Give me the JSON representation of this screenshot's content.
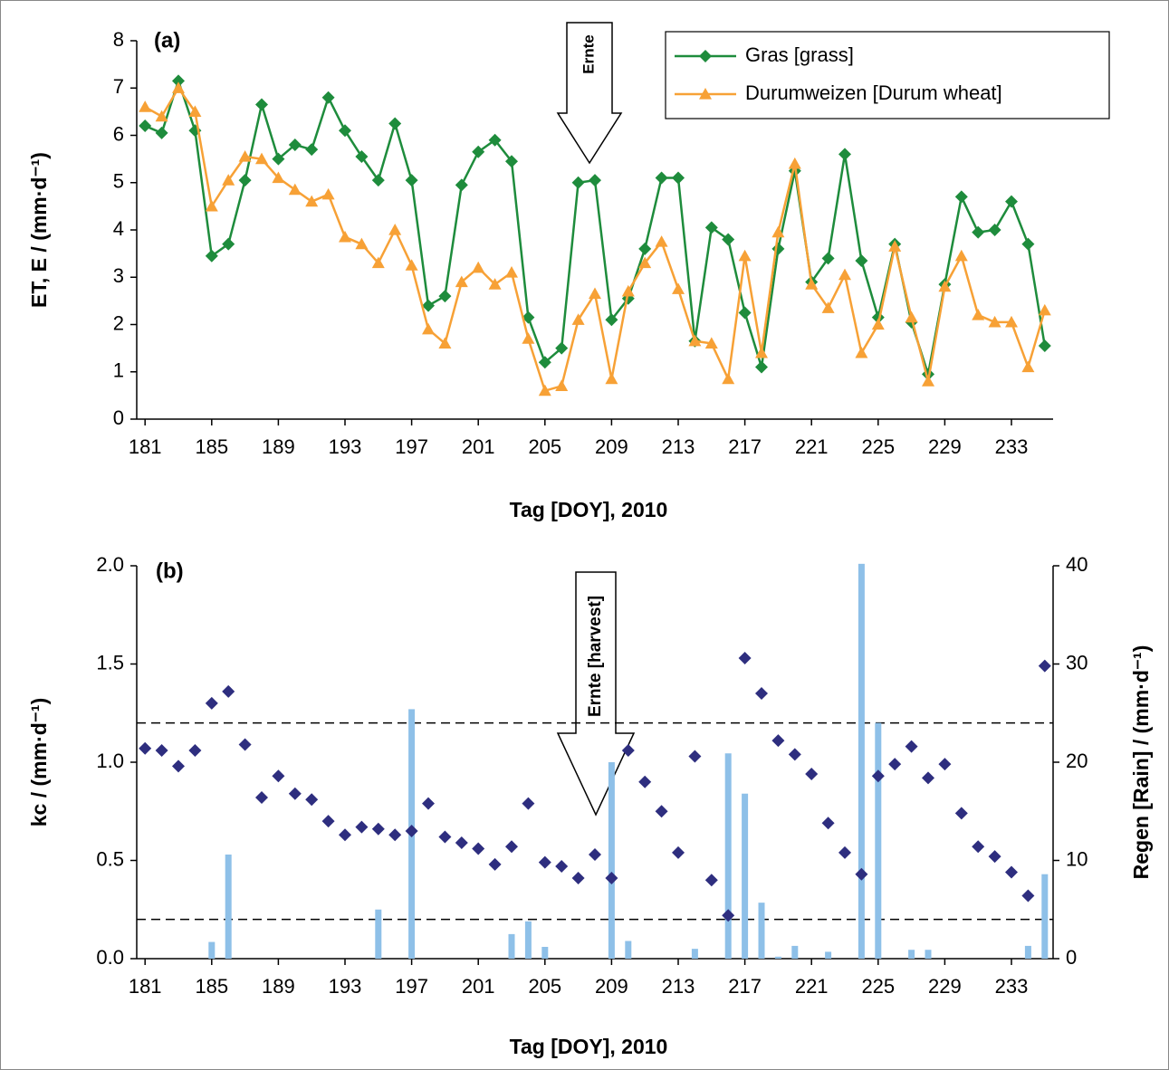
{
  "chart_data": [
    {
      "type": "line",
      "panel_label": "(a)",
      "ylabel": "ET, E / (mm·d⁻¹)",
      "xlabel": "Tag [DOY], 2010",
      "annotation": "Ernte",
      "x": [
        181,
        182,
        183,
        184,
        185,
        186,
        187,
        188,
        189,
        190,
        191,
        192,
        193,
        194,
        195,
        196,
        197,
        198,
        199,
        200,
        201,
        202,
        203,
        204,
        205,
        206,
        207,
        208,
        209,
        210,
        211,
        212,
        213,
        214,
        215,
        216,
        217,
        218,
        219,
        220,
        221,
        222,
        223,
        224,
        225,
        226,
        227,
        228,
        229,
        230,
        231,
        232,
        233,
        234,
        235
      ],
      "xlim": [
        180.5,
        235.5
      ],
      "xticks": [
        181,
        185,
        189,
        193,
        197,
        201,
        205,
        209,
        213,
        217,
        221,
        225,
        229,
        233
      ],
      "ylim": [
        0,
        8
      ],
      "yticks": [
        0,
        1,
        2,
        3,
        4,
        5,
        6,
        7,
        8
      ],
      "legend": "top-right",
      "series": [
        {
          "name": "Gras [grass]",
          "color": "#1e8c3c",
          "marker": "diamond",
          "values": [
            6.2,
            6.05,
            7.15,
            6.1,
            3.45,
            3.7,
            5.05,
            6.65,
            5.5,
            5.8,
            5.7,
            6.8,
            6.1,
            5.55,
            5.05,
            6.25,
            5.05,
            2.4,
            2.6,
            4.95,
            5.65,
            5.9,
            5.45,
            2.15,
            1.2,
            1.5,
            5.0,
            5.05,
            2.1,
            2.55,
            3.6,
            5.1,
            5.1,
            1.65,
            4.05,
            3.8,
            2.25,
            1.1,
            3.6,
            5.25,
            2.9,
            3.4,
            5.6,
            3.35,
            2.15,
            3.7,
            2.05,
            0.95,
            2.85,
            4.7,
            3.95,
            4.0,
            4.6,
            3.7,
            1.55
          ]
        },
        {
          "name": "Durumweizen [Durum wheat]",
          "color": "#f7a136",
          "marker": "triangle",
          "values": [
            6.6,
            6.4,
            7.0,
            6.5,
            4.5,
            5.05,
            5.55,
            5.5,
            5.1,
            4.85,
            4.6,
            4.75,
            3.85,
            3.7,
            3.3,
            4.0,
            3.25,
            1.9,
            1.6,
            2.9,
            3.2,
            2.85,
            3.1,
            1.7,
            0.6,
            0.7,
            2.1,
            2.65,
            0.85,
            2.7,
            3.3,
            3.75,
            2.75,
            1.65,
            1.6,
            0.85,
            3.45,
            1.4,
            3.95,
            5.4,
            2.85,
            2.35,
            3.05,
            1.4,
            2.0,
            3.65,
            2.15,
            0.8,
            2.8,
            3.45,
            2.2,
            2.05,
            2.05,
            1.1,
            2.3
          ]
        }
      ]
    },
    {
      "type": "combo",
      "panel_label": "(b)",
      "ylabel": "kc / (mm·d⁻¹)",
      "y2label": "Regen [Rain] / (mm·d⁻¹)",
      "xlabel": "Tag [DOY], 2010",
      "annotation": "Ernte [harvest]",
      "x": [
        181,
        182,
        183,
        184,
        185,
        186,
        187,
        188,
        189,
        190,
        191,
        192,
        193,
        194,
        195,
        196,
        197,
        198,
        199,
        200,
        201,
        202,
        203,
        204,
        205,
        206,
        207,
        208,
        209,
        210,
        211,
        212,
        213,
        214,
        215,
        216,
        217,
        218,
        219,
        220,
        221,
        222,
        223,
        224,
        225,
        226,
        227,
        228,
        229,
        230,
        231,
        232,
        233,
        234,
        235
      ],
      "xlim": [
        180.5,
        235.5
      ],
      "xticks": [
        181,
        185,
        189,
        193,
        197,
        201,
        205,
        209,
        213,
        217,
        221,
        225,
        229,
        233
      ],
      "ylim": [
        0,
        2
      ],
      "yticks": [
        {
          "value": 0,
          "label": "0.0"
        },
        {
          "value": 0.5,
          "label": "0.5"
        },
        {
          "value": 1,
          "label": "1.0"
        },
        {
          "value": 1.5,
          "label": "1.5"
        },
        {
          "value": 2,
          "label": "2.0"
        }
      ],
      "y2lim": [
        0,
        40
      ],
      "y2ticks": [
        0,
        10,
        20,
        30,
        40
      ],
      "reference_lines": [
        1.2,
        0.2
      ],
      "series": [
        {
          "kind": "bar",
          "axis": "y2",
          "color": "#8ec0e8",
          "values": [
            0,
            0,
            0,
            0,
            1.7,
            10.6,
            0,
            0,
            0,
            0,
            0,
            0,
            0,
            0,
            5,
            0,
            25.4,
            0,
            0,
            0,
            0,
            0,
            2.5,
            3.8,
            1.2,
            0,
            0,
            0,
            20,
            1.8,
            0,
            0,
            0,
            1.0,
            0,
            20.9,
            16.8,
            5.7,
            0.2,
            1.3,
            0,
            0.7,
            0,
            40.2,
            24,
            0,
            0.9,
            0.9,
            0,
            0,
            0,
            0,
            0,
            1.3,
            8.6
          ]
        },
        {
          "kind": "scatter",
          "marker": "diamond",
          "color": "#2e2e7f",
          "values": [
            1.07,
            1.06,
            0.98,
            1.06,
            1.3,
            1.36,
            1.09,
            0.82,
            0.93,
            0.84,
            0.81,
            0.7,
            0.63,
            0.67,
            0.66,
            0.63,
            0.65,
            0.79,
            0.62,
            0.59,
            0.56,
            0.48,
            0.57,
            0.79,
            0.49,
            0.47,
            0.41,
            0.53,
            0.41,
            1.06,
            0.9,
            0.75,
            0.54,
            1.03,
            0.4,
            0.22,
            1.53,
            1.35,
            1.11,
            1.04,
            0.94,
            0.69,
            0.54,
            0.43,
            0.93,
            0.99,
            1.08,
            0.92,
            0.99,
            0.74,
            0.57,
            0.52,
            0.44,
            0.32,
            1.49
          ]
        }
      ]
    }
  ]
}
